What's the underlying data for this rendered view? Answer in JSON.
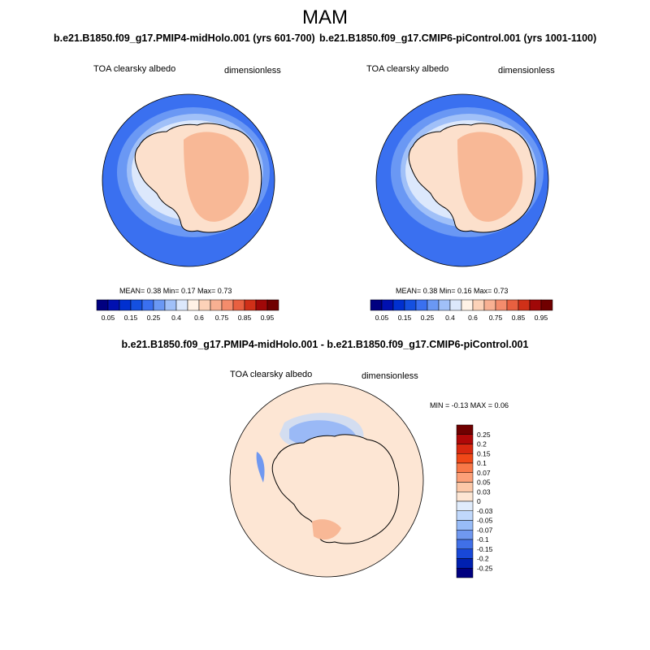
{
  "title": "MAM",
  "panels": [
    {
      "case": "b.e21.B1850.f09_g17.PMIP4-midHolo.001 (yrs 601-700)",
      "variable": "TOA clearsky albedo",
      "units": "dimensionless",
      "stats": "MEAN=   0.38   Min=   0.17   Max=   0.73"
    },
    {
      "case": "b.e21.B1850.f09_g17.CMIP6-piControl.001 (yrs 1001-1100)",
      "variable": "TOA clearsky albedo",
      "units": "dimensionless",
      "stats": "MEAN=   0.38   Min=   0.16   Max=   0.73"
    }
  ],
  "diff": {
    "title": "b.e21.B1850.f09_g17.PMIP4-midHolo.001 - b.e21.B1850.f09_g17.CMIP6-piControl.001",
    "variable": "TOA clearsky albedo",
    "units": "dimensionless",
    "stats": "MIN =  -0.13 MAX =   0.06"
  },
  "colorbar_top": {
    "colors": [
      "#000080",
      "#0010b0",
      "#0030d0",
      "#1450e0",
      "#3a70f0",
      "#6a98f4",
      "#a0c0f8",
      "#dce8fc",
      "#fff2e6",
      "#fcd2b8",
      "#f8b092",
      "#f48c6c",
      "#e86040",
      "#d03018",
      "#a00808",
      "#700000"
    ],
    "labels": [
      "0.05",
      "0.15",
      "0.25",
      "0.4",
      "0.6",
      "0.75",
      "0.85",
      "0.95"
    ]
  },
  "colorbar_diff": {
    "colors": [
      "#700000",
      "#b00808",
      "#d82810",
      "#f04818",
      "#f87848",
      "#fca078",
      "#fcc8a8",
      "#fde6d4",
      "#e0ecfc",
      "#c0d8fc",
      "#98bcf8",
      "#7098f0",
      "#4070e8",
      "#1848d8",
      "#0020b0",
      "#000080"
    ],
    "labels": [
      "0.25",
      "0.2",
      "0.15",
      "0.1",
      "0.07",
      "0.05",
      "0.03",
      "0",
      "-0.03",
      "-0.05",
      "-0.07",
      "-0.1",
      "-0.15",
      "-0.2",
      "-0.25"
    ]
  },
  "map_colors": {
    "ocean": "#3a70f0",
    "ice_band1": "#6a98f4",
    "ice_band2": "#a0c0f8",
    "ice_band3": "#dce8fc",
    "land_low": "#fce0cc",
    "land_high": "#f8b896",
    "diff_bg": "#fde6d4",
    "diff_blue": "#4070e8",
    "diff_lightblue": "#c0d8fc",
    "diff_red": "#f8b896"
  }
}
